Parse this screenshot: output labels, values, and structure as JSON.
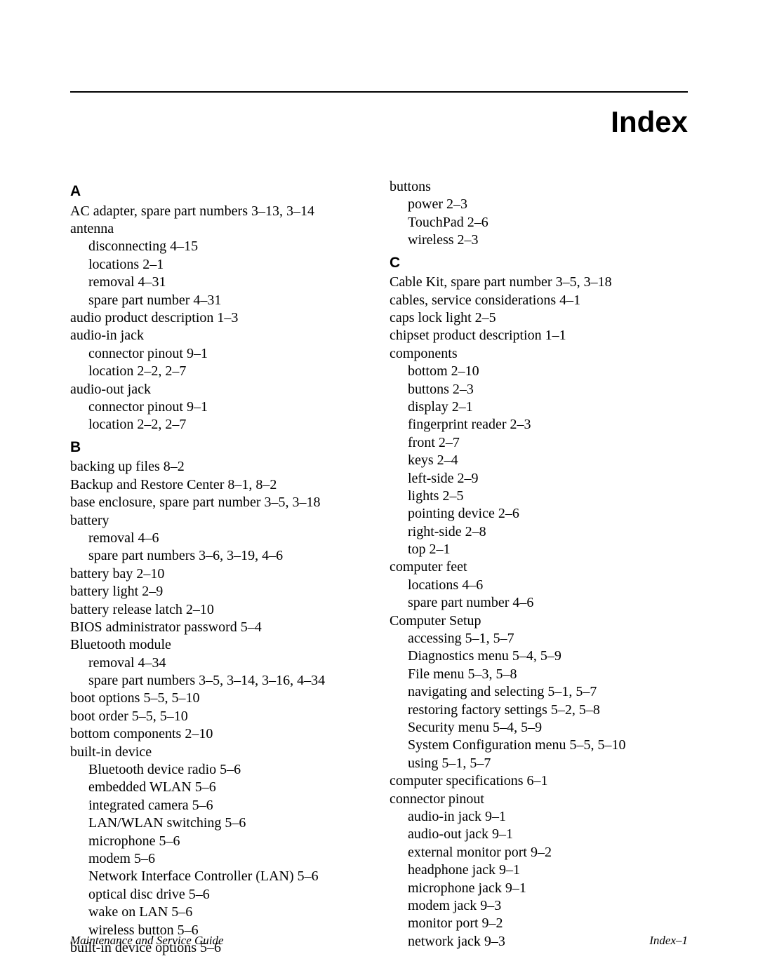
{
  "title": "Index",
  "footer": {
    "left": "Maintenance and Service Guide",
    "right": "Index–1"
  },
  "left_col": {
    "A": {
      "letter": "A",
      "items": [
        {
          "t": "AC adapter, spare part numbers 3–13, 3–14"
        },
        {
          "t": "antenna"
        },
        {
          "t": "disconnecting 4–15",
          "sub": true
        },
        {
          "t": "locations 2–1",
          "sub": true
        },
        {
          "t": "removal 4–31",
          "sub": true
        },
        {
          "t": "spare part number 4–31",
          "sub": true
        },
        {
          "t": "audio product description 1–3"
        },
        {
          "t": "audio-in jack"
        },
        {
          "t": "connector pinout 9–1",
          "sub": true
        },
        {
          "t": "location 2–2, 2–7",
          "sub": true
        },
        {
          "t": "audio-out jack"
        },
        {
          "t": "connector pinout 9–1",
          "sub": true
        },
        {
          "t": "location 2–2, 2–7",
          "sub": true
        }
      ]
    },
    "B": {
      "letter": "B",
      "items": [
        {
          "t": "backing up files 8–2"
        },
        {
          "t": "Backup and Restore Center 8–1, 8–2"
        },
        {
          "t": "base enclosure, spare part number 3–5, 3–18"
        },
        {
          "t": "battery"
        },
        {
          "t": "removal 4–6",
          "sub": true
        },
        {
          "t": "spare part numbers 3–6, 3–19, 4–6",
          "sub": true
        },
        {
          "t": "battery bay 2–10"
        },
        {
          "t": "battery light 2–9"
        },
        {
          "t": "battery release latch 2–10"
        },
        {
          "t": "BIOS administrator password 5–4"
        },
        {
          "t": "Bluetooth module"
        },
        {
          "t": "removal 4–34",
          "sub": true
        },
        {
          "t": "spare part numbers 3–5, 3–14, 3–16, 4–34",
          "sub": true
        },
        {
          "t": "boot options 5–5, 5–10"
        },
        {
          "t": "boot order 5–5, 5–10"
        },
        {
          "t": "bottom components 2–10"
        },
        {
          "t": "built-in device"
        },
        {
          "t": "Bluetooth device radio 5–6",
          "sub": true
        },
        {
          "t": "embedded WLAN 5–6",
          "sub": true
        },
        {
          "t": "integrated camera 5–6",
          "sub": true
        },
        {
          "t": "LAN/WLAN switching 5–6",
          "sub": true
        },
        {
          "t": "microphone 5–6",
          "sub": true
        },
        {
          "t": "modem 5–6",
          "sub": true
        },
        {
          "t": "Network Interface Controller (LAN) 5–6",
          "sub": true
        },
        {
          "t": "optical disc drive 5–6",
          "sub": true
        },
        {
          "t": "wake on LAN 5–6",
          "sub": true
        },
        {
          "t": "wireless button 5–6",
          "sub": true
        },
        {
          "t": "built-in device options 5–6"
        }
      ]
    }
  },
  "right_col": {
    "pre": [
      {
        "t": "buttons"
      },
      {
        "t": "power 2–3",
        "sub": true
      },
      {
        "t": "TouchPad 2–6",
        "sub": true
      },
      {
        "t": "wireless 2–3",
        "sub": true
      }
    ],
    "C": {
      "letter": "C",
      "items": [
        {
          "t": "Cable Kit, spare part number 3–5, 3–18"
        },
        {
          "t": "cables, service considerations 4–1"
        },
        {
          "t": "caps lock light 2–5"
        },
        {
          "t": "chipset product description 1–1"
        },
        {
          "t": "components"
        },
        {
          "t": "bottom 2–10",
          "sub": true
        },
        {
          "t": "buttons 2–3",
          "sub": true
        },
        {
          "t": "display 2–1",
          "sub": true
        },
        {
          "t": "fingerprint reader 2–3",
          "sub": true
        },
        {
          "t": "front 2–7",
          "sub": true
        },
        {
          "t": "keys 2–4",
          "sub": true
        },
        {
          "t": "left-side 2–9",
          "sub": true
        },
        {
          "t": "lights 2–5",
          "sub": true
        },
        {
          "t": "pointing device 2–6",
          "sub": true
        },
        {
          "t": "right-side 2–8",
          "sub": true
        },
        {
          "t": "top 2–1",
          "sub": true
        },
        {
          "t": "computer feet"
        },
        {
          "t": "locations 4–6",
          "sub": true
        },
        {
          "t": "spare part number 4–6",
          "sub": true
        },
        {
          "t": "Computer Setup"
        },
        {
          "t": "accessing 5–1, 5–7",
          "sub": true
        },
        {
          "t": "Diagnostics menu 5–4, 5–9",
          "sub": true
        },
        {
          "t": "File menu 5–3, 5–8",
          "sub": true
        },
        {
          "t": "navigating and selecting 5–1, 5–7",
          "sub": true
        },
        {
          "t": "restoring factory settings 5–2, 5–8",
          "sub": true
        },
        {
          "t": "Security menu 5–4, 5–9",
          "sub": true
        },
        {
          "t": "System Configuration menu 5–5, 5–10",
          "sub": true
        },
        {
          "t": "using 5–1, 5–7",
          "sub": true
        },
        {
          "t": "computer specifications 6–1"
        },
        {
          "t": "connector pinout"
        },
        {
          "t": "audio-in jack 9–1",
          "sub": true
        },
        {
          "t": "audio-out jack 9–1",
          "sub": true
        },
        {
          "t": "external monitor port 9–2",
          "sub": true
        },
        {
          "t": "headphone jack 9–1",
          "sub": true
        },
        {
          "t": "microphone jack 9–1",
          "sub": true
        },
        {
          "t": "modem jack 9–3",
          "sub": true
        },
        {
          "t": "monitor port 9–2",
          "sub": true
        },
        {
          "t": "network jack 9–3",
          "sub": true
        }
      ]
    }
  }
}
